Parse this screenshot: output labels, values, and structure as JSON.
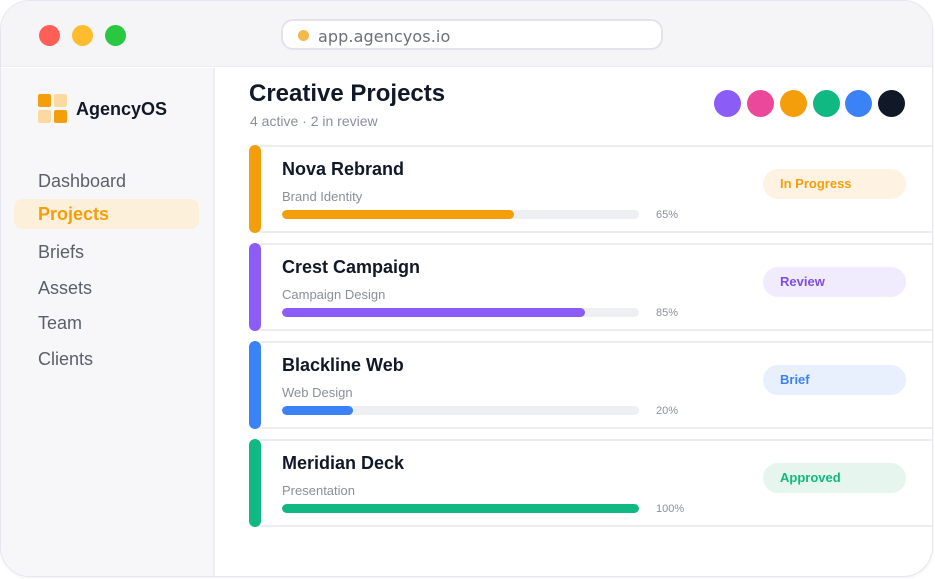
{
  "browser": {
    "url": "app.agencyos.io"
  },
  "sidebar": {
    "brand": "AgencyOS",
    "items": [
      {
        "label": "Dashboard",
        "active": false
      },
      {
        "label": "Projects",
        "active": true
      },
      {
        "label": "Briefs",
        "active": false
      },
      {
        "label": "Assets",
        "active": false
      },
      {
        "label": "Team",
        "active": false
      },
      {
        "label": "Clients",
        "active": false
      }
    ]
  },
  "header": {
    "title": "Creative Projects",
    "subtitle": "4 active · 2 in review"
  },
  "palette": [
    "#8b5cf6",
    "#ec4899",
    "#f59e0b",
    "#10b981",
    "#3b82f6",
    "#111827"
  ],
  "projects": [
    {
      "name": "Nova Rebrand",
      "category": "Brand Identity",
      "progress": 65,
      "progress_label": "65%",
      "status": "In Progress",
      "accent": "#f59e0b",
      "badge_bg": "#fef3e2",
      "badge_fg": "#f59e0b"
    },
    {
      "name": "Crest Campaign",
      "category": "Campaign Design",
      "progress": 85,
      "progress_label": "85%",
      "status": "Review",
      "accent": "#8b5cf6",
      "badge_bg": "#f1ecfd",
      "badge_fg": "#7c4ee4"
    },
    {
      "name": "Blackline Web",
      "category": "Web Design",
      "progress": 20,
      "progress_label": "20%",
      "status": "Brief",
      "accent": "#3b82f6",
      "badge_bg": "#e9f0fd",
      "badge_fg": "#3b82f6"
    },
    {
      "name": "Meridian Deck",
      "category": "Presentation",
      "progress": 100,
      "progress_label": "100%",
      "status": "Approved",
      "accent": "#10b981",
      "badge_bg": "#e6f6ef",
      "badge_fg": "#10b981"
    }
  ]
}
